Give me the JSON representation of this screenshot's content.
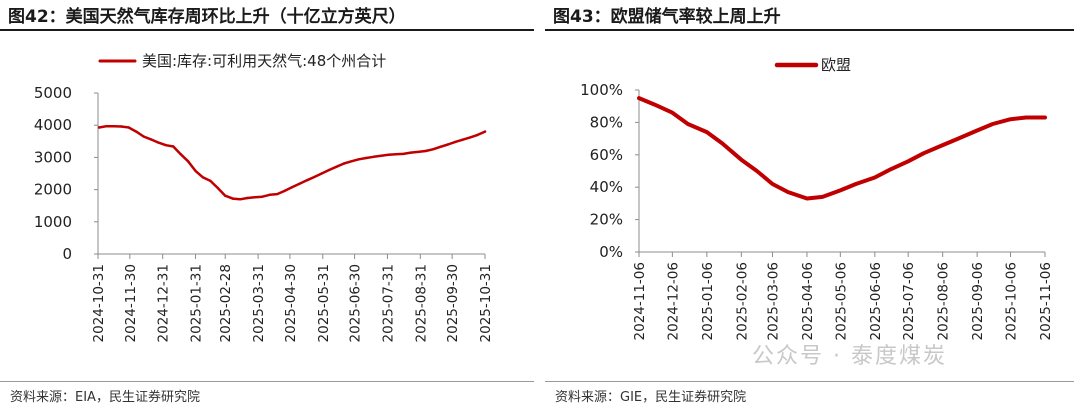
{
  "left": {
    "title": "图42：美国天然气库存周环比上升（十亿立方英尺）",
    "source": "资料来源：EIA，民生证券研究院"
  },
  "right": {
    "title": "图43：欧盟储气率较上周上升",
    "source": "资料来源：GIE，民生证券研究院"
  },
  "watermark": "公众号 · 泰度煤炭",
  "colors": {
    "series": "#c00000",
    "axis": "#8c8c8c"
  },
  "chart_data": [
    {
      "type": "line",
      "legend_position": "top",
      "grid": false,
      "ylim": [
        0,
        5000
      ],
      "yticks": [
        "0",
        "1000",
        "2000",
        "3000",
        "4000",
        "5000"
      ],
      "xticks": [
        "2024-10-31",
        "2024-11-30",
        "2024-12-31",
        "2025-01-31",
        "2025-02-28",
        "2025-03-31",
        "2025-04-30",
        "2025-05-31",
        "2025-06-30",
        "2025-07-31",
        "2025-08-31",
        "2025-09-30",
        "2025-10-31"
      ],
      "series": [
        {
          "name": "美国:库存:可利用天然气:48个州合计",
          "x": [
            "2024-11-01",
            "2024-11-08",
            "2024-11-15",
            "2024-11-22",
            "2024-11-29",
            "2024-12-06",
            "2024-12-13",
            "2024-12-20",
            "2024-12-27",
            "2025-01-03",
            "2025-01-10",
            "2025-01-17",
            "2025-01-24",
            "2025-01-31",
            "2025-02-07",
            "2025-02-14",
            "2025-02-21",
            "2025-02-28",
            "2025-03-07",
            "2025-03-14",
            "2025-03-21",
            "2025-03-28",
            "2025-04-04",
            "2025-04-11",
            "2025-04-18",
            "2025-04-25",
            "2025-05-02",
            "2025-05-09",
            "2025-05-16",
            "2025-05-23",
            "2025-05-30",
            "2025-06-06",
            "2025-06-13",
            "2025-06-20",
            "2025-06-27",
            "2025-07-04",
            "2025-07-11",
            "2025-07-18",
            "2025-07-25",
            "2025-08-01",
            "2025-08-08",
            "2025-08-15",
            "2025-08-22",
            "2025-08-29",
            "2025-09-05",
            "2025-09-12",
            "2025-09-19",
            "2025-09-26",
            "2025-10-03",
            "2025-10-10",
            "2025-10-17",
            "2025-10-24",
            "2025-10-31"
          ],
          "values": [
            3930,
            3970,
            3965,
            3960,
            3930,
            3800,
            3650,
            3560,
            3460,
            3380,
            3340,
            3100,
            2880,
            2580,
            2380,
            2270,
            2050,
            1810,
            1720,
            1700,
            1740,
            1760,
            1780,
            1840,
            1860,
            1960,
            2070,
            2180,
            2290,
            2390,
            2500,
            2610,
            2710,
            2810,
            2880,
            2940,
            2980,
            3020,
            3050,
            3080,
            3100,
            3110,
            3150,
            3170,
            3200,
            3250,
            3330,
            3400,
            3480,
            3550,
            3620,
            3700,
            3800
          ]
        }
      ]
    },
    {
      "type": "line",
      "legend_position": "top",
      "grid": false,
      "ylim": [
        0,
        100
      ],
      "yticks": [
        "0%",
        "20%",
        "40%",
        "60%",
        "80%",
        "100%"
      ],
      "xticks": [
        "2024-11-06",
        "2024-12-06",
        "2025-01-06",
        "2025-02-06",
        "2025-03-06",
        "2025-04-06",
        "2025-05-06",
        "2025-06-06",
        "2025-07-06",
        "2025-08-06",
        "2025-09-06",
        "2025-10-06",
        "2025-11-06"
      ],
      "series": [
        {
          "name": "欧盟",
          "x": [
            "2024-11-06",
            "2024-11-20",
            "2024-12-06",
            "2024-12-20",
            "2025-01-06",
            "2025-01-20",
            "2025-02-06",
            "2025-02-20",
            "2025-03-06",
            "2025-03-20",
            "2025-04-06",
            "2025-04-20",
            "2025-05-06",
            "2025-05-20",
            "2025-06-06",
            "2025-06-20",
            "2025-07-06",
            "2025-07-20",
            "2025-08-06",
            "2025-08-20",
            "2025-09-06",
            "2025-09-20",
            "2025-10-06",
            "2025-10-20",
            "2025-11-06"
          ],
          "values": [
            95,
            91,
            86,
            79,
            74,
            67,
            57,
            50,
            42,
            37,
            33,
            34,
            38,
            42,
            46,
            51,
            56,
            61,
            66,
            70,
            75,
            79,
            82,
            83,
            83
          ]
        }
      ]
    }
  ]
}
